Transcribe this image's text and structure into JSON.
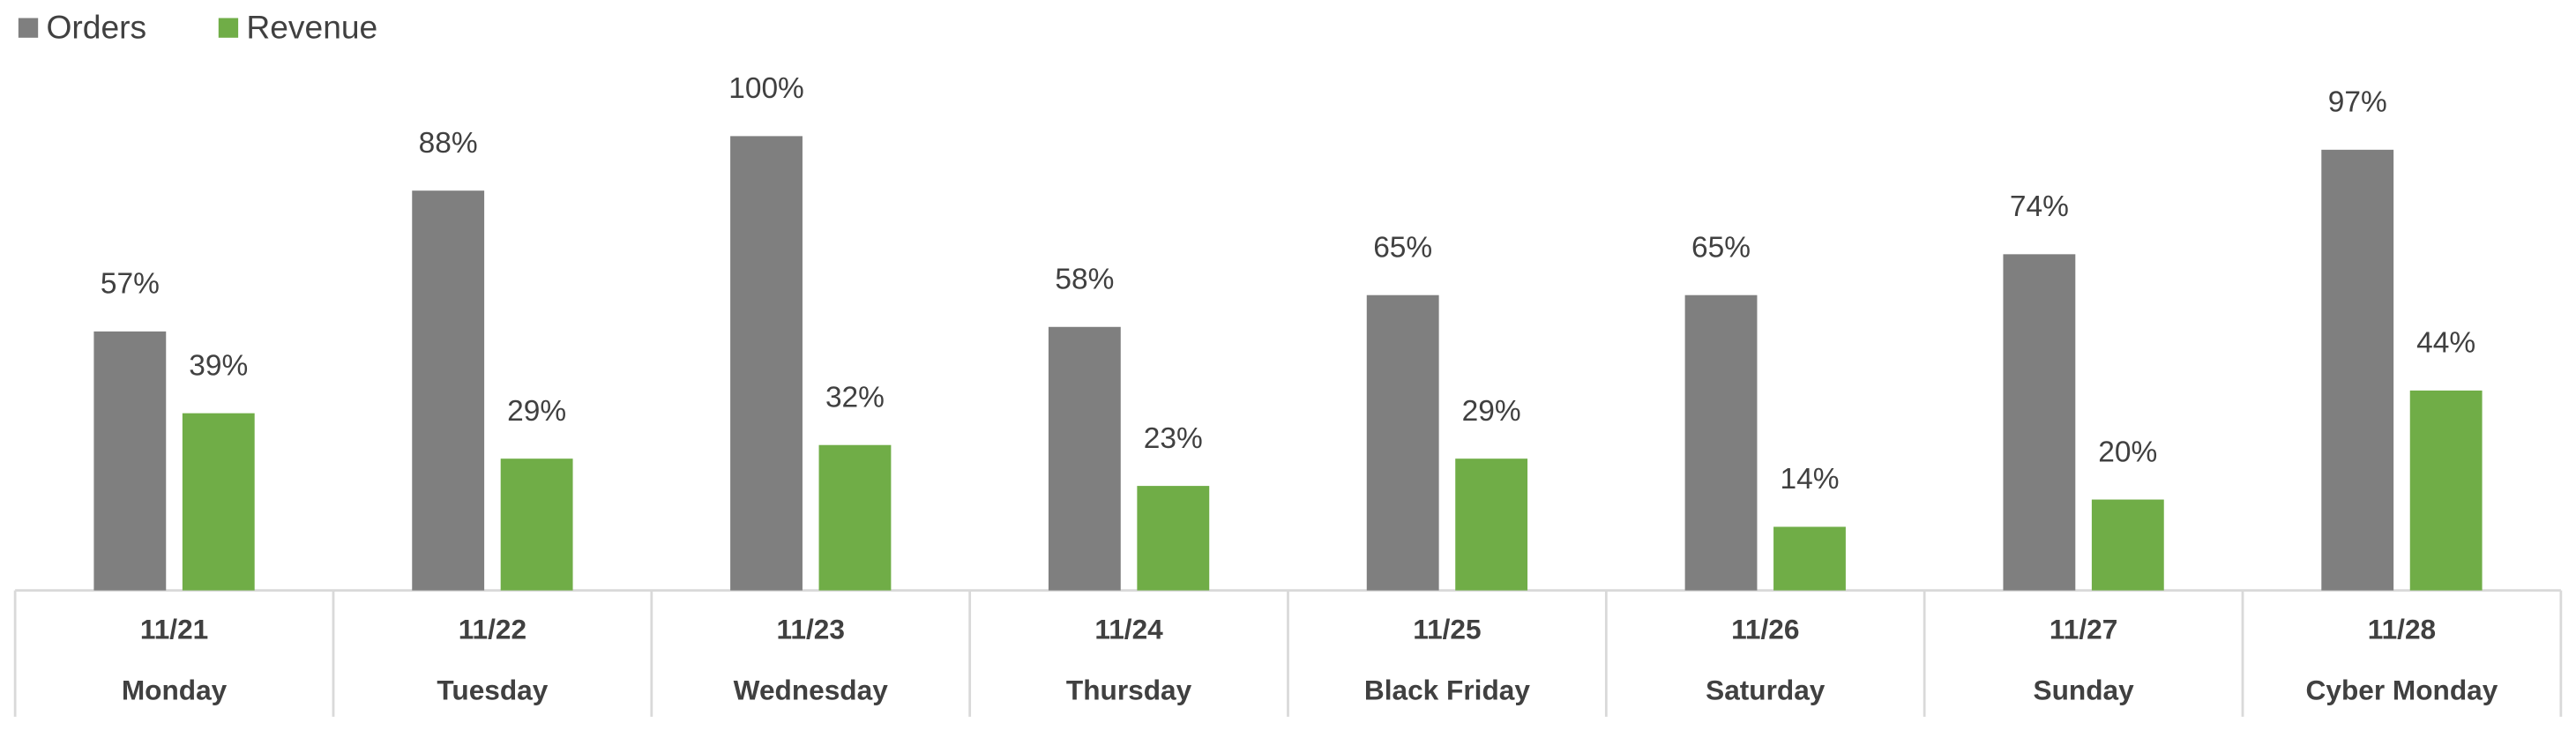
{
  "chart_data": {
    "type": "bar",
    "categories": [
      [
        "11/21",
        "Monday"
      ],
      [
        "11/22",
        "Tuesday"
      ],
      [
        "11/23",
        "Wednesday"
      ],
      [
        "11/24",
        "Thursday"
      ],
      [
        "11/25",
        "Black Friday"
      ],
      [
        "11/26",
        "Saturday"
      ],
      [
        "11/27",
        "Sunday"
      ],
      [
        "11/28",
        "Cyber Monday"
      ]
    ],
    "series": [
      {
        "name": "Orders",
        "color": "#7f7f7f",
        "values": [
          57,
          88,
          100,
          58,
          65,
          65,
          74,
          97
        ],
        "value_labels": [
          "57%",
          "88%",
          "100%",
          "58%",
          "65%",
          "65%",
          "74%",
          "97%"
        ]
      },
      {
        "name": "Revenue",
        "color": "#70ad47",
        "values": [
          39,
          29,
          32,
          23,
          29,
          14,
          20,
          44
        ],
        "value_labels": [
          "39%",
          "29%",
          "32%",
          "23%",
          "29%",
          "14%",
          "20%",
          "44%"
        ]
      }
    ],
    "ylim": [
      0,
      100
    ],
    "legend": "top-left"
  }
}
